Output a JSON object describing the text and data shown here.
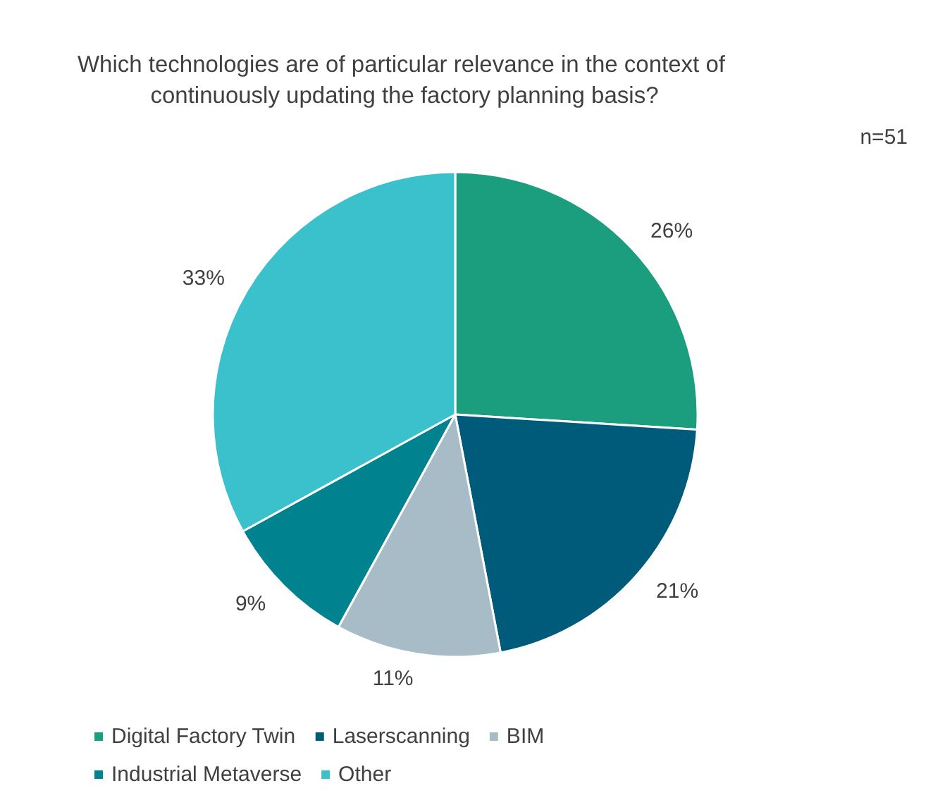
{
  "chart_data": {
    "type": "pie",
    "title": "Which technologies are of particular relevance in the context of continuously updating the factory planning basis?",
    "annotations": [
      "n=51"
    ],
    "categories": [
      "Digital Factory Twin",
      "Laserscanning",
      "BIM",
      "Industrial Metaverse",
      "Other"
    ],
    "values": [
      26,
      21,
      11,
      9,
      33
    ],
    "colors": [
      "#1a9e7e",
      "#005a7a",
      "#a8bcc8",
      "#00828f",
      "#3bc1cc"
    ],
    "value_labels": [
      "26%",
      "21%",
      "11%",
      "9%",
      "33%"
    ],
    "legend": "bottom left"
  }
}
